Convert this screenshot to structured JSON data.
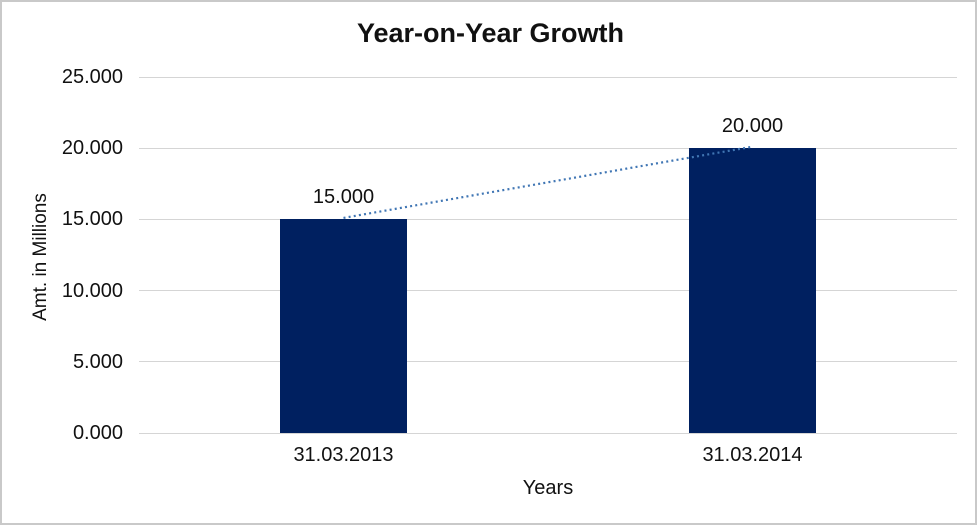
{
  "frame": {
    "background_color": "#ffffff",
    "border_color": "#c9c9c9"
  },
  "chart_data": {
    "type": "bar",
    "title": "Year-on-Year Growth",
    "categories": [
      "31.03.2013",
      "31.03.2014"
    ],
    "values": [
      15,
      20
    ],
    "value_labels": [
      "15.000",
      "20.000"
    ],
    "xlabel": "Years",
    "ylabel": "Amt. in Millions",
    "ylim": [
      0,
      25
    ],
    "ytick_step": 5,
    "ytick_labels": [
      "0.000",
      "5.000",
      "10.000",
      "15.000",
      "20.000",
      "25.000"
    ],
    "grid": true,
    "legend_position": "none",
    "bar_color": "#002060",
    "gridline_color": "#d5d5d5",
    "text_color": "#111111",
    "trendline": {
      "type": "linear",
      "style": "dotted",
      "color": "#4076b4",
      "from_value": 15,
      "to_value": 20
    }
  }
}
